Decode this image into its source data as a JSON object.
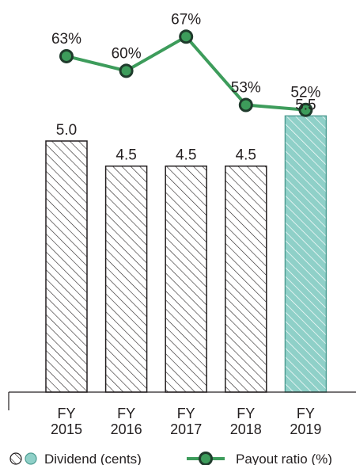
{
  "chart_data": {
    "type": "bar",
    "categories": [
      "FY 2015",
      "FY 2016",
      "FY 2017",
      "FY 2018",
      "FY 2019"
    ],
    "category_lines": [
      [
        "FY",
        "2015"
      ],
      [
        "FY",
        "2016"
      ],
      [
        "FY",
        "2017"
      ],
      [
        "FY",
        "2018"
      ],
      [
        "FY",
        "2019"
      ]
    ],
    "series": [
      {
        "name": "Dividend (cents)",
        "type": "bar",
        "values": [
          5.0,
          4.5,
          4.5,
          4.5,
          5.5
        ],
        "value_labels": [
          "5.0",
          "4.5",
          "4.5",
          "4.5",
          "5.5"
        ]
      },
      {
        "name": "Payout ratio (%)",
        "type": "line",
        "values": [
          63,
          60,
          67,
          53,
          52
        ],
        "value_labels": [
          "63%",
          "60%",
          "67%",
          "53%",
          "52%"
        ]
      }
    ],
    "legend_position": "bottom",
    "colors": {
      "bar_hatch": "#231f20",
      "bar_highlight_fill": "#8fd0c8",
      "bar_highlight_stroke": "#4e9c92",
      "line": "#3d9c5b",
      "marker_outline": "#1f3b2c"
    },
    "highlight_index": 4
  }
}
